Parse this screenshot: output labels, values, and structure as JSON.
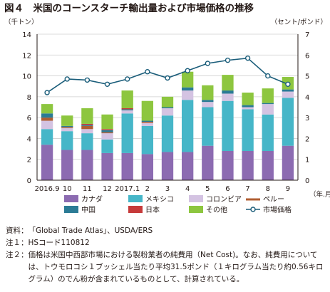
{
  "chart_data": {
    "type": "bar",
    "title": "図４　米国のコーンスターチ輸出量および市場価格の推移",
    "y_left_unit": "（千トン）",
    "y_right_unit": "（セント/ポンド）",
    "x_unit": "（年.月）",
    "ylim_left": [
      0,
      14
    ],
    "ylim_right": [
      0,
      7
    ],
    "yticks_left": [
      "0",
      "2",
      "4",
      "6",
      "8",
      "10",
      "12",
      "14"
    ],
    "yticks_right": [
      "0",
      "1",
      "2",
      "3",
      "4",
      "5",
      "6",
      "7"
    ],
    "categories": [
      "2016.9",
      "10",
      "11",
      "12",
      "2017.1",
      "2",
      "3",
      "4",
      "5",
      "6",
      "7",
      "8",
      "9"
    ],
    "series": [
      {
        "name": "カナダ",
        "color": "#8c6bb1",
        "values": [
          3.4,
          2.9,
          2.9,
          2.6,
          2.6,
          2.5,
          2.7,
          2.7,
          3.3,
          2.8,
          2.8,
          2.8,
          3.3
        ]
      },
      {
        "name": "メキシコ",
        "color": "#46b6c8",
        "values": [
          1.5,
          1.8,
          1.6,
          1.3,
          3.8,
          2.7,
          3.5,
          5.0,
          3.7,
          4.8,
          4.0,
          3.5,
          4.6
        ]
      },
      {
        "name": "コロンビア",
        "color": "#d4c3e2",
        "values": [
          0.8,
          0.3,
          0.4,
          0.6,
          0.3,
          0.3,
          0.7,
          0.9,
          0.5,
          0.7,
          0.2,
          1.0,
          0.6
        ]
      },
      {
        "name": "ペルー",
        "color": "#b05e32",
        "values": [
          0.3,
          0.1,
          0.3,
          0.1,
          0.0,
          0.1,
          0.0,
          0.0,
          0.0,
          0.0,
          0.0,
          0.0,
          0.0
        ]
      },
      {
        "name": "中国",
        "color": "#2b7b95",
        "values": [
          0.4,
          0.1,
          0.1,
          0.2,
          0.1,
          0.1,
          0.1,
          0.3,
          0.2,
          0.3,
          0.2,
          0.1,
          0.2
        ]
      },
      {
        "name": "日本",
        "color": "#c63a3a",
        "values": [
          0.0,
          0.0,
          0.1,
          0.1,
          0.1,
          0.0,
          0.0,
          0.0,
          0.0,
          0.0,
          0.0,
          0.0,
          0.0
        ]
      },
      {
        "name": "その他",
        "color": "#8dc63f",
        "values": [
          0.9,
          1.0,
          1.5,
          1.4,
          1.7,
          1.9,
          1.0,
          1.5,
          1.4,
          1.5,
          1.2,
          1.4,
          1.2
        ]
      }
    ],
    "line": {
      "name": "市場価格",
      "color": "#1a5d7a",
      "values": [
        4.2,
        4.85,
        4.8,
        4.6,
        4.85,
        5.2,
        4.9,
        5.25,
        5.6,
        5.75,
        5.85,
        5.0,
        4.6
      ]
    },
    "legend_placement": "bottom",
    "grid": true
  },
  "notes": [
    {
      "key": "資料：",
      "text": "「Global Trade Atlas」、USDA/ERS"
    },
    {
      "key": "注１：",
      "text": "HSコード110812"
    },
    {
      "key": "注２：",
      "text": "価格は米国中西部市場における製粉業者の純費用（Net Cost)。なお、純費用については、トウモロコシ１ブッシェル当たり平均31.5ポンド（１キログラム当たり約0.56キログラム）のでん粉が含まれているものとして、計算されている。"
    }
  ]
}
